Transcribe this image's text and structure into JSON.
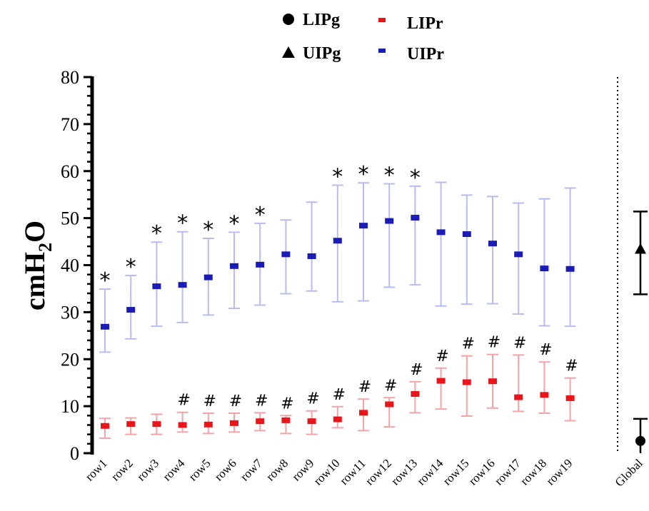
{
  "chart_data": {
    "type": "scatter",
    "title": "",
    "xlabel": "",
    "ylabel": "cmH2O",
    "ylabel_main": "cmH",
    "ylabel_sub": "2",
    "ylabel_end": "O",
    "ylim": [
      0,
      80
    ],
    "yticks": [
      0,
      10,
      20,
      30,
      40,
      50,
      60,
      70,
      80
    ],
    "yticklabels": [
      "0",
      "10",
      "20",
      "30",
      "40",
      "50",
      "60",
      "70",
      "80"
    ],
    "grid": false,
    "legend_position": "top",
    "categories": [
      "row1",
      "row2",
      "row3",
      "row4",
      "row5",
      "row6",
      "row7",
      "row8",
      "row9",
      "row10",
      "row11",
      "row12",
      "row13",
      "row14",
      "row15",
      "row16",
      "row17",
      "row18",
      "row19"
    ],
    "global_label": "Global",
    "series": [
      {
        "name": "LIPg",
        "marker": "circle",
        "color": "#000000",
        "category": "Global",
        "value": 2.6,
        "err_low": 0,
        "err_high": 7.3
      },
      {
        "name": "UIPg",
        "marker": "triangle",
        "color": "#000000",
        "category": "Global",
        "value": 43.5,
        "err_low": 33.8,
        "err_high": 51.4
      },
      {
        "name": "LIPr",
        "marker": "square",
        "color": "#e8161b",
        "errcolor": "#f4a3a6",
        "values": [
          5.8,
          6.2,
          6.2,
          6.0,
          6.1,
          6.4,
          6.8,
          7.0,
          6.8,
          7.2,
          8.6,
          10.4,
          12.6,
          15.4,
          15.1,
          15.3,
          11.9,
          12.4,
          11.7
        ],
        "err_low": [
          3.2,
          4.0,
          4.0,
          4.5,
          4.2,
          4.5,
          4.8,
          4.2,
          4.0,
          5.4,
          4.8,
          5.6,
          8.6,
          9.4,
          7.9,
          9.6,
          8.9,
          8.5,
          6.9
        ],
        "err_high": [
          7.4,
          7.5,
          8.3,
          8.7,
          8.5,
          8.5,
          8.6,
          8.0,
          9.0,
          9.9,
          11.5,
          11.8,
          15.2,
          18.1,
          20.7,
          21.0,
          20.9,
          19.4,
          16.0
        ]
      },
      {
        "name": "UIPr",
        "marker": "square",
        "color": "#1b1bb5",
        "errcolor": "#b9bcf0",
        "values": [
          26.9,
          30.5,
          35.5,
          35.8,
          37.4,
          39.8,
          40.1,
          42.3,
          41.9,
          45.2,
          48.4,
          49.4,
          50.1,
          47.0,
          46.6,
          44.6,
          42.3,
          39.3,
          39.2
        ],
        "err_low": [
          21.5,
          24.3,
          27.0,
          27.8,
          29.4,
          30.8,
          31.5,
          33.9,
          34.5,
          32.2,
          32.4,
          35.3,
          35.8,
          31.3,
          31.7,
          31.8,
          29.6,
          27.1,
          27.0
        ],
        "err_high": [
          34.9,
          37.8,
          44.9,
          47.1,
          45.7,
          47.0,
          48.9,
          49.6,
          53.4,
          57.0,
          57.5,
          57.3,
          56.8,
          57.6,
          54.9,
          54.6,
          53.2,
          54.1,
          56.4
        ]
      }
    ],
    "annotations": {
      "star": "*",
      "hash": "#",
      "star_rows": [
        "row1",
        "row2",
        "row3",
        "row4",
        "row5",
        "row6",
        "row7",
        "row10",
        "row11",
        "row12",
        "row13"
      ],
      "hash_rows": [
        "row4",
        "row5",
        "row6",
        "row7",
        "row8",
        "row9",
        "row10",
        "row11",
        "row12",
        "row13",
        "row14",
        "row15",
        "row16",
        "row17",
        "row18",
        "row19"
      ]
    }
  }
}
